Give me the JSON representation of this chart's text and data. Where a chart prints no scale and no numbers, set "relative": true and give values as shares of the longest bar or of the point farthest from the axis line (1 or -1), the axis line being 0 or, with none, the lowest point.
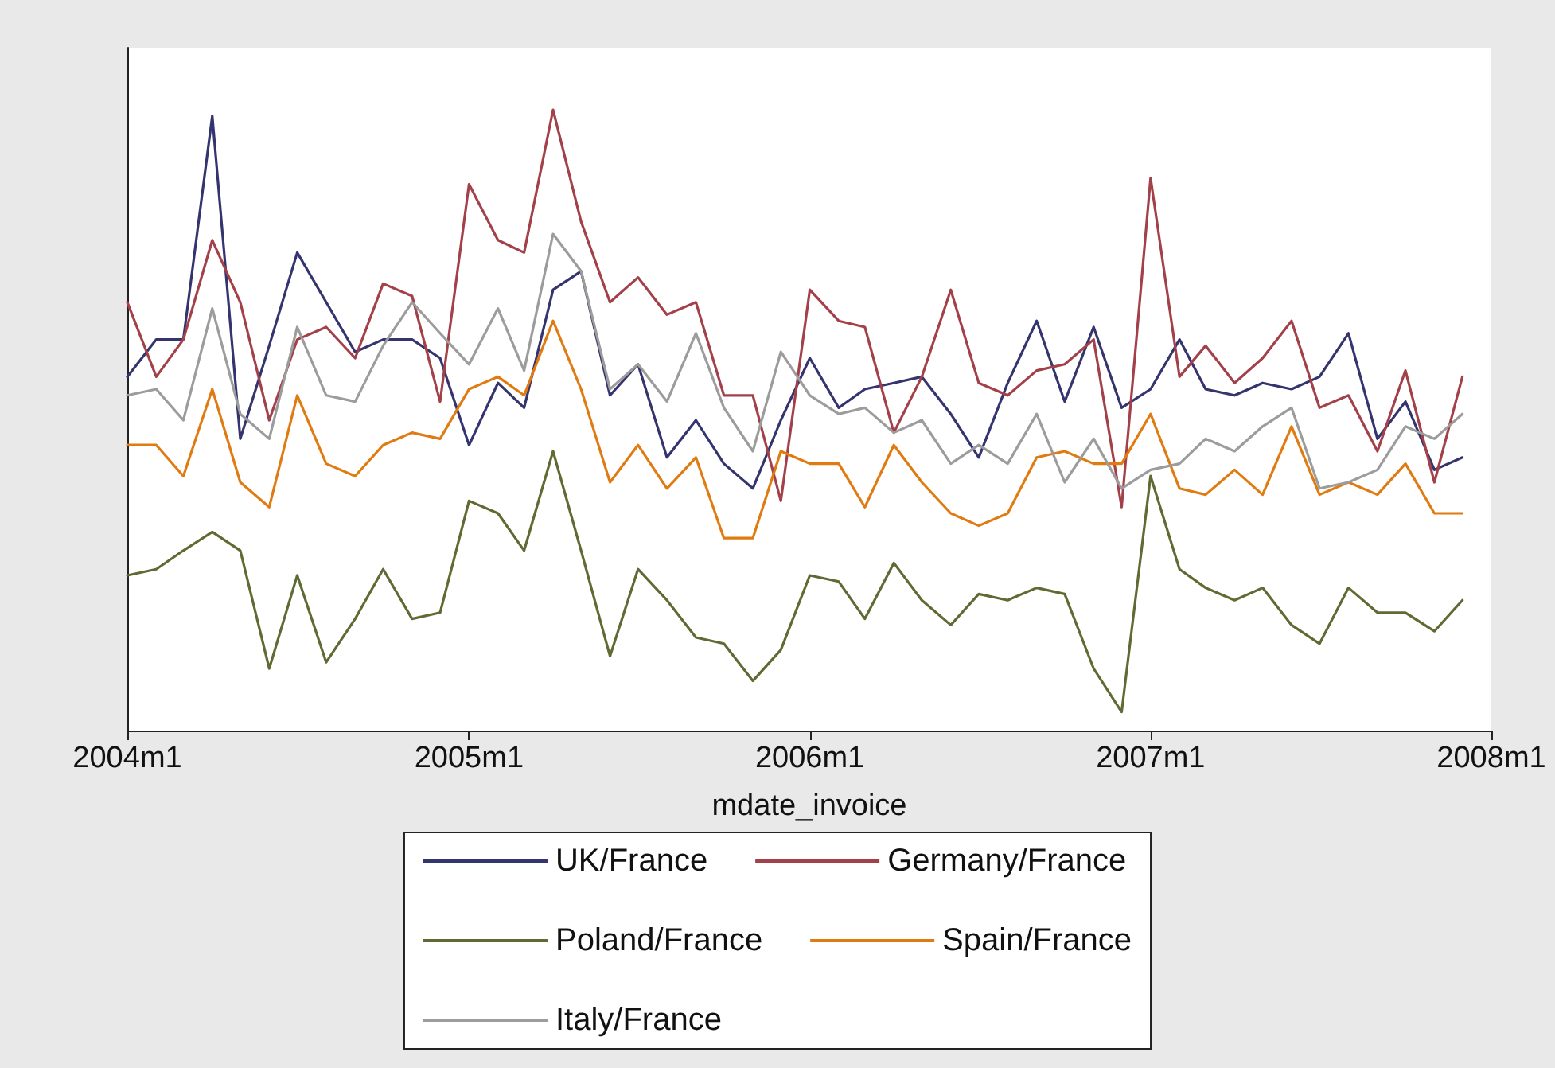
{
  "chart_data": {
    "type": "line",
    "relative": true,
    "xlabel": "mdate_invoice",
    "legend": "bottom",
    "marker": "none",
    "line_style": "solid",
    "x": [
      "2004-01",
      "2004-02",
      "2004-03",
      "2004-04",
      "2004-05",
      "2004-06",
      "2004-07",
      "2004-08",
      "2004-09",
      "2004-10",
      "2004-11",
      "2004-12",
      "2005-01",
      "2005-02",
      "2005-03",
      "2005-04",
      "2005-05",
      "2005-06",
      "2005-07",
      "2005-08",
      "2005-09",
      "2005-10",
      "2005-11",
      "2005-12",
      "2006-01",
      "2006-02",
      "2006-03",
      "2006-04",
      "2006-05",
      "2006-06",
      "2006-07",
      "2006-08",
      "2006-09",
      "2006-10",
      "2006-11",
      "2006-12",
      "2007-01",
      "2007-02",
      "2007-03",
      "2007-04",
      "2007-05",
      "2007-06",
      "2007-07",
      "2007-08",
      "2007-09",
      "2007-10",
      "2007-11",
      "2007-12"
    ],
    "xlim": [
      "2004-01",
      "2008-01"
    ],
    "xticks": [
      {
        "value": "2004-01",
        "label": "2004m1"
      },
      {
        "value": "2005-01",
        "label": "2005m1"
      },
      {
        "value": "2006-01",
        "label": "2006m1"
      },
      {
        "value": "2007-01",
        "label": "2007m1"
      },
      {
        "value": "2008-01",
        "label": "2008m1"
      }
    ],
    "series": [
      {
        "name": "UK/France",
        "color": "#34346e",
        "values": [
          0.57,
          0.63,
          0.63,
          0.99,
          0.47,
          0.62,
          0.77,
          0.69,
          0.61,
          0.63,
          0.63,
          0.6,
          0.46,
          0.56,
          0.52,
          0.71,
          0.74,
          0.54,
          0.59,
          0.44,
          0.5,
          0.43,
          0.39,
          0.5,
          0.6,
          0.52,
          0.55,
          0.56,
          0.57,
          0.51,
          0.44,
          0.56,
          0.66,
          0.53,
          0.65,
          0.52,
          0.55,
          0.63,
          0.55,
          0.54,
          0.56,
          0.55,
          0.57,
          0.64,
          0.47,
          0.53,
          0.42,
          0.44
        ]
      },
      {
        "name": "Germany/France",
        "color": "#a3414a",
        "values": [
          0.69,
          0.57,
          0.63,
          0.79,
          0.69,
          0.5,
          0.63,
          0.65,
          0.6,
          0.72,
          0.7,
          0.53,
          0.88,
          0.79,
          0.77,
          1.0,
          0.82,
          0.69,
          0.73,
          0.67,
          0.69,
          0.54,
          0.54,
          0.37,
          0.71,
          0.66,
          0.65,
          0.48,
          0.57,
          0.71,
          0.56,
          0.54,
          0.58,
          0.59,
          0.63,
          0.36,
          0.89,
          0.57,
          0.62,
          0.56,
          0.6,
          0.66,
          0.52,
          0.54,
          0.45,
          0.58,
          0.4,
          0.57
        ]
      },
      {
        "name": "Poland/France",
        "color": "#5f6b33",
        "values": [
          0.25,
          0.26,
          0.29,
          0.32,
          0.29,
          0.1,
          0.25,
          0.11,
          0.18,
          0.26,
          0.18,
          0.19,
          0.37,
          0.35,
          0.29,
          0.45,
          0.29,
          0.12,
          0.26,
          0.21,
          0.15,
          0.14,
          0.08,
          0.13,
          0.25,
          0.24,
          0.18,
          0.27,
          0.21,
          0.17,
          0.22,
          0.21,
          0.23,
          0.22,
          0.1,
          0.03,
          0.41,
          0.26,
          0.23,
          0.21,
          0.23,
          0.17,
          0.14,
          0.23,
          0.19,
          0.19,
          0.16,
          0.21
        ]
      },
      {
        "name": "Spain/France",
        "color": "#e07b12",
        "values": [
          0.46,
          0.46,
          0.41,
          0.55,
          0.4,
          0.36,
          0.54,
          0.43,
          0.41,
          0.46,
          0.48,
          0.47,
          0.55,
          0.57,
          0.54,
          0.66,
          0.55,
          0.4,
          0.46,
          0.39,
          0.44,
          0.31,
          0.31,
          0.45,
          0.43,
          0.43,
          0.36,
          0.46,
          0.4,
          0.35,
          0.33,
          0.35,
          0.44,
          0.45,
          0.43,
          0.43,
          0.51,
          0.39,
          0.38,
          0.42,
          0.38,
          0.49,
          0.38,
          0.4,
          0.38,
          0.43,
          0.35,
          0.35
        ]
      },
      {
        "name": "Italy/France",
        "color": "#9c9c9c",
        "values": [
          0.54,
          0.55,
          0.5,
          0.68,
          0.51,
          0.47,
          0.65,
          0.54,
          0.53,
          0.62,
          0.69,
          0.64,
          0.59,
          0.68,
          0.58,
          0.8,
          0.74,
          0.55,
          0.59,
          0.53,
          0.64,
          0.52,
          0.45,
          0.61,
          0.54,
          0.51,
          0.52,
          0.48,
          0.5,
          0.43,
          0.46,
          0.43,
          0.51,
          0.4,
          0.47,
          0.39,
          0.42,
          0.43,
          0.47,
          0.45,
          0.49,
          0.52,
          0.39,
          0.4,
          0.42,
          0.49,
          0.47,
          0.51
        ]
      }
    ]
  }
}
